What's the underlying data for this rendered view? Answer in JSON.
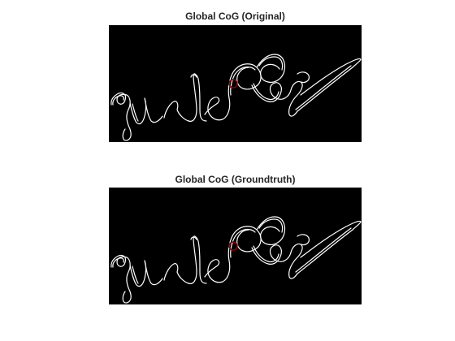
{
  "figure": {
    "panels": [
      {
        "title": "Global CoG (Original)",
        "cog_marker_color": "#8b0000"
      },
      {
        "title": "Global CoG (Groundtruth)",
        "cog_marker_color": "#8b0000"
      }
    ],
    "image_background": "#000000",
    "signature_stroke_color": "#ffffff"
  }
}
